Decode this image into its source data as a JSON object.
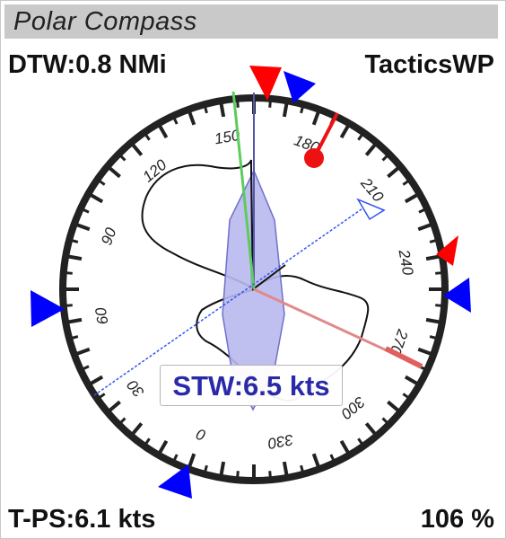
{
  "window": {
    "title": "Polar Compass"
  },
  "readouts": {
    "dtw": "DTW:0.8 NMi",
    "waypoint": "TacticsWP",
    "tps": "T-PS:6.1 kts",
    "percent": "106 %",
    "stw": "STW:6.5 kts"
  },
  "dial": {
    "labels": [
      "0",
      "30",
      "60",
      "90",
      "120",
      "150",
      "180",
      "210",
      "240",
      "270",
      "300",
      "330"
    ]
  },
  "colors": {
    "frame": "#c8c8c8",
    "title_bar": "#c9c9c9",
    "dial_ring": "#222222",
    "speed_text": "#2a2aa8",
    "polar_fill": "#b8b8ee",
    "red_marker": "#ff0000",
    "blue_marker": "#0000ff",
    "green_line": "#5ccc5c",
    "pink_line": "#e08a8a"
  }
}
